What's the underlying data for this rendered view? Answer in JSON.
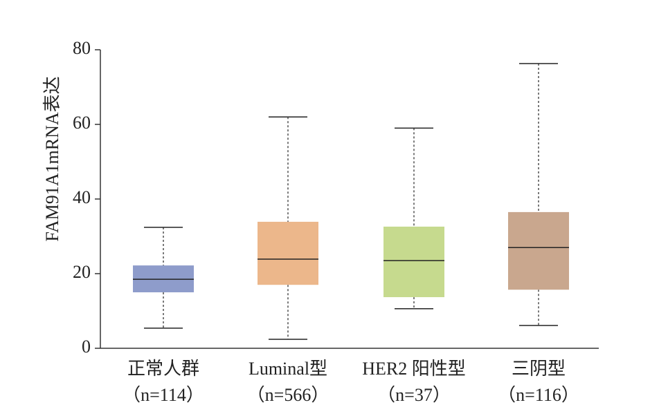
{
  "chart_data": {
    "type": "box",
    "y_label": "FAM91A1mRNA表达",
    "categories": [
      "正常人群",
      "Luminal型",
      "HER2 阳性型",
      "三阴型"
    ],
    "sample_sizes": [
      "（n=114）",
      "（n=566）",
      "（n=37）",
      "（n=116）"
    ],
    "colors": [
      "#8e9ccb",
      "#ecb78b",
      "#c6da8e",
      "#c9a78e"
    ],
    "boxes": [
      {
        "whislo": 5.4,
        "q1": 15,
        "med": 18.5,
        "q3": 22.2,
        "whishi": 32.4
      },
      {
        "whislo": 2.4,
        "q1": 17,
        "med": 23.9,
        "q3": 33.9,
        "whishi": 62
      },
      {
        "whislo": 10.6,
        "q1": 13.7,
        "med": 23.5,
        "q3": 32.6,
        "whishi": 59
      },
      {
        "whislo": 6.1,
        "q1": 15.7,
        "med": 27,
        "q3": 36.5,
        "whishi": 76.3
      }
    ],
    "ylim": [
      0,
      80
    ],
    "yticks": [
      0,
      20,
      40,
      60,
      80
    ]
  }
}
